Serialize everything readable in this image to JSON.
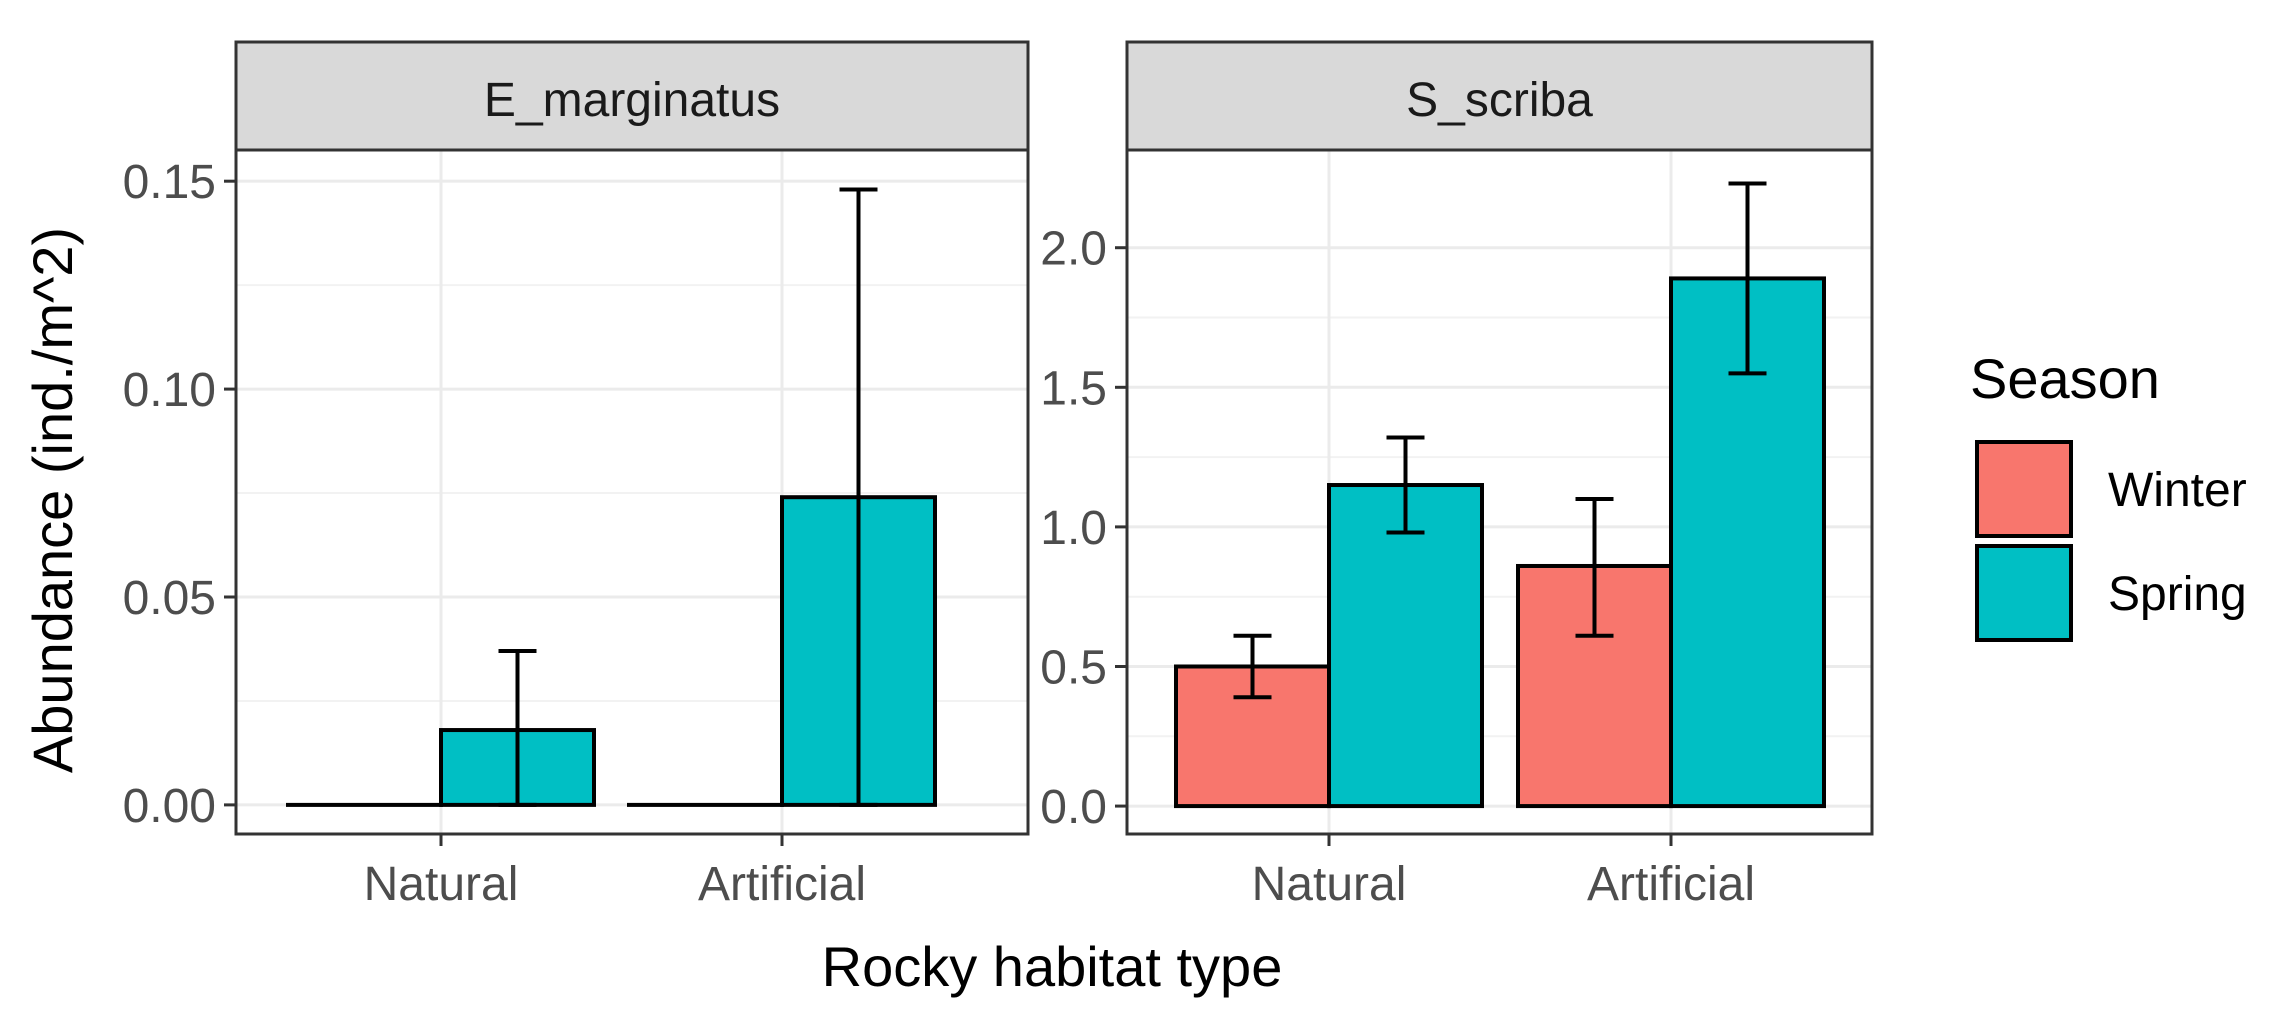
{
  "chart_data": {
    "type": "bar",
    "xlabel": "Rocky habitat type",
    "ylabel": "Abundance (ind./m^2)",
    "categories": [
      "Natural",
      "Artificial"
    ],
    "legend": {
      "title": "Season",
      "placement": "right",
      "items": [
        {
          "label": "Winter",
          "color": "#F8766D"
        },
        {
          "label": "Spring",
          "color": "#00BFC4"
        }
      ]
    },
    "grid": true,
    "panels": [
      {
        "title": "E_marginatus",
        "ylim": [
          -0.007,
          0.1575
        ],
        "yticks": [
          0.0,
          0.05,
          0.1,
          0.15
        ],
        "yticklabels": [
          "0.00",
          "0.05",
          "0.10",
          "0.15"
        ],
        "series": [
          {
            "name": "Winter",
            "values": [
              0.0,
              0.0
            ],
            "err_low": [
              0.0,
              0.0
            ],
            "err_high": [
              0.0,
              0.0
            ]
          },
          {
            "name": "Spring",
            "values": [
              0.018,
              0.074
            ],
            "err_low": [
              0.0,
              0.0
            ],
            "err_high": [
              0.037,
              0.148
            ]
          }
        ]
      },
      {
        "title": "S_scriba",
        "ylim": [
          -0.1,
          2.35
        ],
        "yticks": [
          0.0,
          0.5,
          1.0,
          1.5,
          2.0
        ],
        "yticklabels": [
          "0.0",
          "0.5",
          "1.0",
          "1.5",
          "2.0"
        ],
        "series": [
          {
            "name": "Winter",
            "values": [
              0.5,
              0.86
            ],
            "err_low": [
              0.39,
              0.61
            ],
            "err_high": [
              0.61,
              1.1
            ]
          },
          {
            "name": "Spring",
            "values": [
              1.15,
              1.89
            ],
            "err_low": [
              0.98,
              1.55
            ],
            "err_high": [
              1.32,
              2.23
            ]
          }
        ]
      }
    ]
  }
}
